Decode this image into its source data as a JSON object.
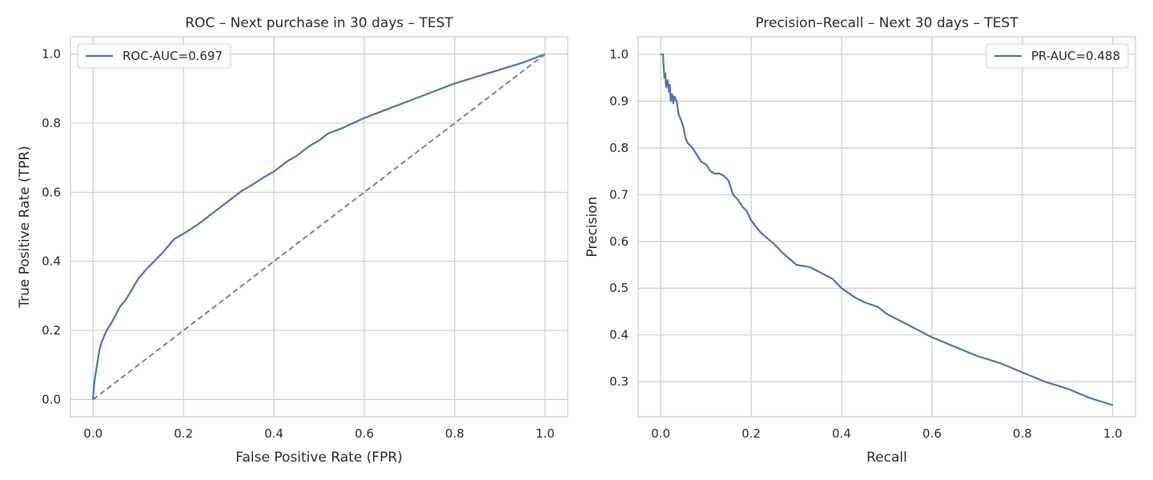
{
  "style": {
    "series_color": "#4c72b0",
    "diagonal_color": "#808080",
    "grid_color": "#cccccc",
    "frame_color": "#cccccc",
    "text_color": "#262626"
  },
  "chart_data": [
    {
      "type": "line",
      "title": "ROC – Next purchase in 30 days – TEST",
      "xlabel": "False Positive Rate (FPR)",
      "ylabel": "True Positive Rate (TPR)",
      "xlim": [
        -0.05,
        1.05
      ],
      "ylim": [
        -0.05,
        1.05
      ],
      "xticks": [
        0.0,
        0.2,
        0.4,
        0.6,
        0.8,
        1.0
      ],
      "yticks": [
        0.0,
        0.2,
        0.4,
        0.6,
        0.8,
        1.0
      ],
      "xtick_labels": [
        "0.0",
        "0.2",
        "0.4",
        "0.6",
        "0.8",
        "1.0"
      ],
      "ytick_labels": [
        "0.0",
        "0.2",
        "0.4",
        "0.6",
        "0.8",
        "1.0"
      ],
      "grid": true,
      "legend_position": "top-left",
      "series": [
        {
          "name": "ROC-AUC=0.697",
          "color": "#4c72b0",
          "style": "solid",
          "x": [
            0.0,
            0.002,
            0.005,
            0.01,
            0.015,
            0.02,
            0.03,
            0.04,
            0.05,
            0.06,
            0.07,
            0.08,
            0.1,
            0.12,
            0.15,
            0.18,
            0.2,
            0.23,
            0.25,
            0.27,
            0.3,
            0.33,
            0.35,
            0.38,
            0.4,
            0.43,
            0.45,
            0.48,
            0.5,
            0.52,
            0.55,
            0.6,
            0.65,
            0.7,
            0.75,
            0.8,
            0.85,
            0.9,
            0.95,
            1.0
          ],
          "y": [
            0.0,
            0.04,
            0.07,
            0.11,
            0.15,
            0.17,
            0.2,
            0.22,
            0.245,
            0.27,
            0.285,
            0.305,
            0.35,
            0.38,
            0.42,
            0.465,
            0.48,
            0.505,
            0.525,
            0.545,
            0.575,
            0.605,
            0.62,
            0.645,
            0.66,
            0.69,
            0.705,
            0.735,
            0.75,
            0.77,
            0.785,
            0.815,
            0.84,
            0.865,
            0.89,
            0.915,
            0.935,
            0.955,
            0.975,
            1.0
          ]
        },
        {
          "color": "#808080",
          "style": "dashed",
          "x": [
            0.0,
            1.0
          ],
          "y": [
            0.0,
            1.0
          ]
        }
      ]
    },
    {
      "type": "line",
      "title": "Precision–Recall – Next 30 days – TEST",
      "xlabel": "Recall",
      "ylabel": "Precision",
      "xlim": [
        -0.05,
        1.05
      ],
      "ylim": [
        0.225,
        1.0375
      ],
      "xticks": [
        0.0,
        0.2,
        0.4,
        0.6,
        0.8,
        1.0
      ],
      "yticks": [
        0.3,
        0.4,
        0.5,
        0.6,
        0.7,
        0.8,
        0.9,
        1.0
      ],
      "xtick_labels": [
        "0.0",
        "0.2",
        "0.4",
        "0.6",
        "0.8",
        "1.0"
      ],
      "ytick_labels": [
        "0.3",
        "0.4",
        "0.5",
        "0.6",
        "0.7",
        "0.8",
        "0.9",
        "1.0"
      ],
      "grid": true,
      "legend_position": "top-right",
      "series": [
        {
          "name": "PR-AUC=0.488",
          "color": "#4c72b0",
          "style": "solid",
          "x": [
            0.0,
            0.005,
            0.006,
            0.008,
            0.01,
            0.012,
            0.015,
            0.018,
            0.02,
            0.022,
            0.025,
            0.028,
            0.03,
            0.035,
            0.04,
            0.045,
            0.05,
            0.055,
            0.06,
            0.07,
            0.08,
            0.09,
            0.1,
            0.11,
            0.12,
            0.13,
            0.14,
            0.15,
            0.16,
            0.17,
            0.18,
            0.19,
            0.2,
            0.22,
            0.25,
            0.27,
            0.3,
            0.33,
            0.35,
            0.38,
            0.4,
            0.43,
            0.45,
            0.48,
            0.5,
            0.55,
            0.6,
            0.65,
            0.7,
            0.75,
            0.8,
            0.85,
            0.9,
            0.95,
            1.0
          ],
          "y": [
            1.0,
            1.0,
            0.98,
            0.95,
            0.96,
            0.93,
            0.945,
            0.92,
            0.935,
            0.9,
            0.915,
            0.895,
            0.91,
            0.9,
            0.87,
            0.86,
            0.845,
            0.82,
            0.81,
            0.8,
            0.785,
            0.77,
            0.765,
            0.75,
            0.745,
            0.745,
            0.74,
            0.73,
            0.7,
            0.69,
            0.675,
            0.665,
            0.645,
            0.62,
            0.595,
            0.575,
            0.55,
            0.545,
            0.535,
            0.52,
            0.5,
            0.48,
            0.47,
            0.46,
            0.445,
            0.42,
            0.395,
            0.375,
            0.355,
            0.34,
            0.32,
            0.3,
            0.285,
            0.265,
            0.25
          ]
        }
      ]
    }
  ]
}
